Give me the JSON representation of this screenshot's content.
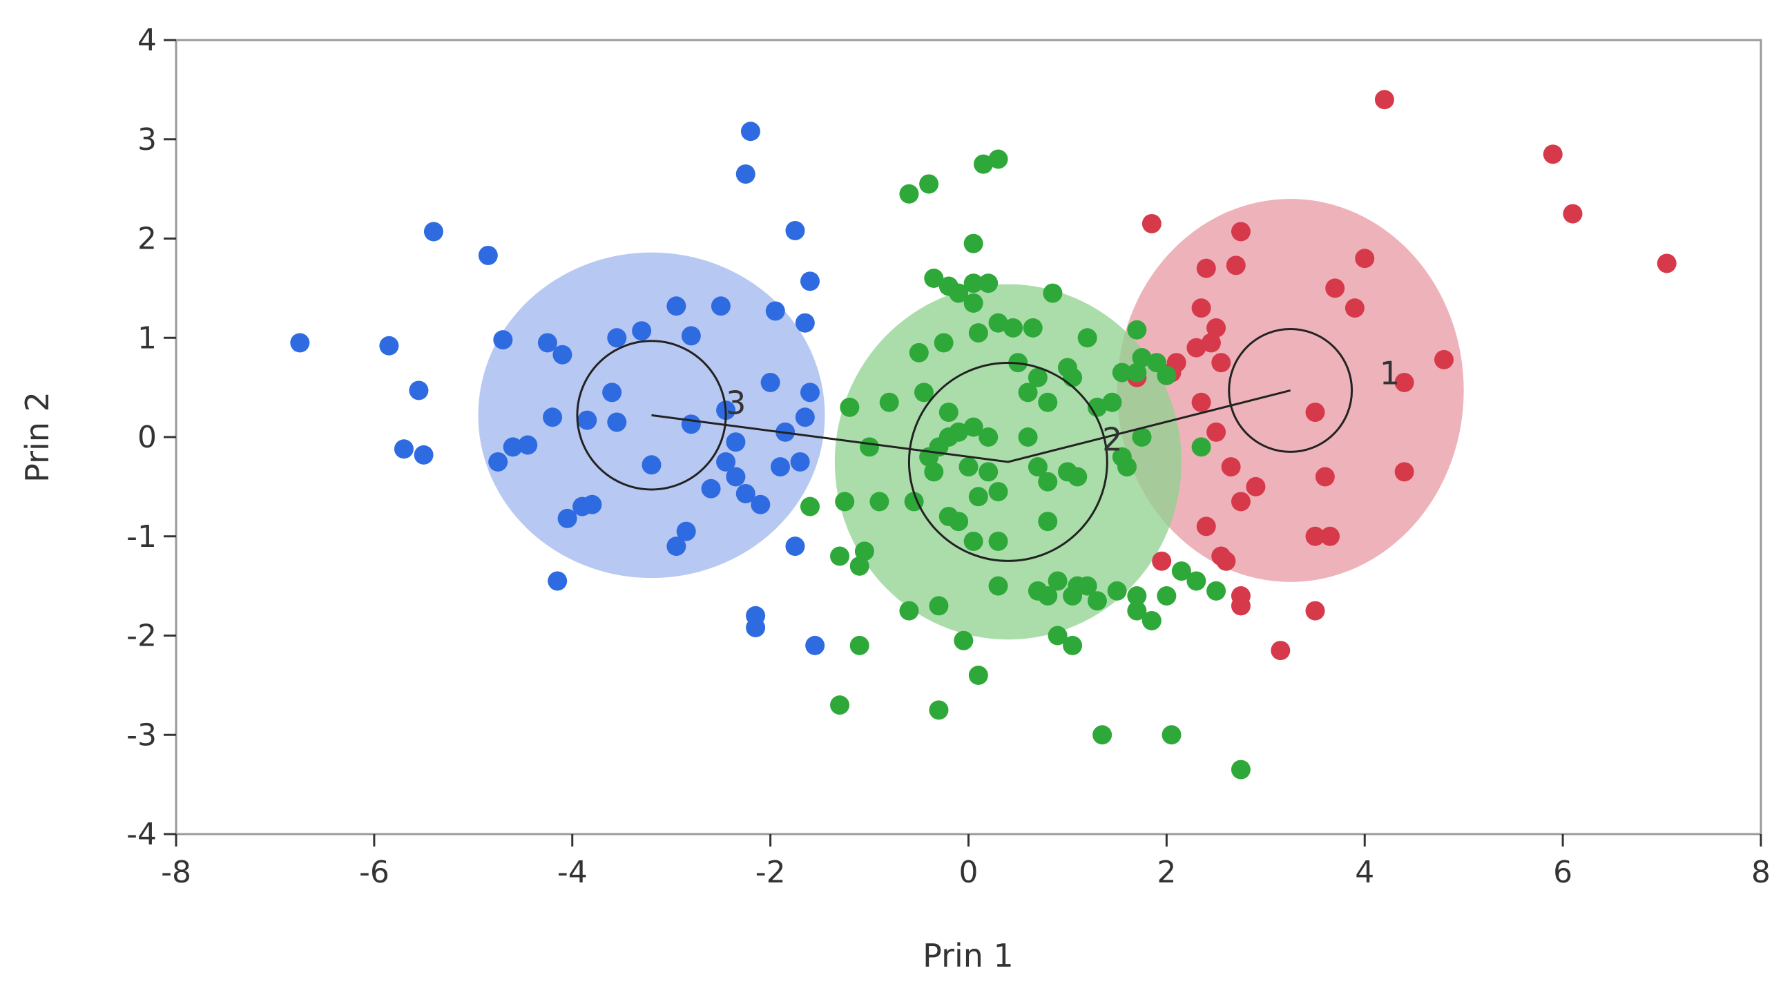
{
  "chart_data": {
    "type": "scatter",
    "title": "",
    "xlabel": "Prin 1",
    "ylabel": "Prin 2",
    "xlim": [
      -8,
      8
    ],
    "ylim": [
      -4,
      4
    ],
    "x_ticks": [
      "-8",
      "-6",
      "-4",
      "-2",
      "0",
      "2",
      "4",
      "6",
      "8"
    ],
    "y_ticks": [
      "-4",
      "-3",
      "-2",
      "-1",
      "0",
      "1",
      "2",
      "3",
      "4"
    ],
    "grid": false,
    "legend": "none",
    "centroid_path": [
      [
        -3.2,
        0.22
      ],
      [
        0.4,
        -0.25
      ],
      [
        3.25,
        0.47
      ]
    ],
    "clusters": [
      {
        "label": "1",
        "color": "#d63a4a",
        "fill": "#e89aa3",
        "centroid": [
          3.25,
          0.47
        ],
        "ellipse_radius": [
          1.75,
          1.93
        ],
        "center_circle_radius": 0.62,
        "label_pos": [
          4.15,
          0.62
        ],
        "points": [
          [
            4.2,
            3.4
          ],
          [
            5.9,
            2.85
          ],
          [
            6.1,
            2.25
          ],
          [
            7.05,
            1.75
          ],
          [
            1.85,
            2.15
          ],
          [
            2.75,
            2.07
          ],
          [
            2.4,
            1.7
          ],
          [
            2.7,
            1.73
          ],
          [
            4.0,
            1.8
          ],
          [
            3.7,
            1.5
          ],
          [
            3.9,
            1.3
          ],
          [
            2.35,
            1.3
          ],
          [
            2.5,
            1.1
          ],
          [
            2.45,
            0.95
          ],
          [
            2.3,
            0.9
          ],
          [
            2.55,
            0.75
          ],
          [
            2.05,
            0.65
          ],
          [
            1.7,
            0.6
          ],
          [
            2.1,
            0.75
          ],
          [
            4.4,
            0.55
          ],
          [
            4.8,
            0.78
          ],
          [
            3.5,
            0.25
          ],
          [
            2.35,
            0.35
          ],
          [
            2.5,
            0.05
          ],
          [
            2.65,
            -0.3
          ],
          [
            2.9,
            -0.5
          ],
          [
            2.75,
            -0.65
          ],
          [
            3.6,
            -0.4
          ],
          [
            4.4,
            -0.35
          ],
          [
            2.4,
            -0.9
          ],
          [
            3.5,
            -1.0
          ],
          [
            3.65,
            -1.0
          ],
          [
            2.55,
            -1.2
          ],
          [
            1.95,
            -1.25
          ],
          [
            2.6,
            -1.25
          ],
          [
            2.75,
            -1.6
          ],
          [
            2.75,
            -1.7
          ],
          [
            3.5,
            -1.75
          ],
          [
            3.15,
            -2.15
          ]
        ]
      },
      {
        "label": "2",
        "color": "#2fa83a",
        "fill": "#8fd18f",
        "centroid": [
          0.4,
          -0.25
        ],
        "ellipse_radius": [
          1.75,
          1.79
        ],
        "center_circle_radius": 1.0,
        "label_pos": [
          1.35,
          -0.05
        ],
        "points": [
          [
            0.3,
            2.8
          ],
          [
            0.15,
            2.75
          ],
          [
            -0.4,
            2.55
          ],
          [
            -0.6,
            2.45
          ],
          [
            0.05,
            1.95
          ],
          [
            -0.35,
            1.6
          ],
          [
            -0.2,
            1.52
          ],
          [
            0.05,
            1.55
          ],
          [
            -0.1,
            1.45
          ],
          [
            0.2,
            1.55
          ],
          [
            0.05,
            1.35
          ],
          [
            0.85,
            1.45
          ],
          [
            0.3,
            1.15
          ],
          [
            0.45,
            1.1
          ],
          [
            0.65,
            1.1
          ],
          [
            0.1,
            1.05
          ],
          [
            -0.25,
            0.95
          ],
          [
            1.2,
            1.0
          ],
          [
            1.7,
            1.08
          ],
          [
            -0.5,
            0.85
          ],
          [
            0.5,
            0.75
          ],
          [
            1.0,
            0.7
          ],
          [
            1.75,
            0.8
          ],
          [
            1.9,
            0.75
          ],
          [
            0.7,
            0.6
          ],
          [
            1.05,
            0.6
          ],
          [
            1.55,
            0.65
          ],
          [
            1.7,
            0.65
          ],
          [
            2.0,
            0.62
          ],
          [
            -0.45,
            0.45
          ],
          [
            0.6,
            0.45
          ],
          [
            0.8,
            0.35
          ],
          [
            -0.8,
            0.35
          ],
          [
            -1.2,
            0.3
          ],
          [
            -0.2,
            0.25
          ],
          [
            0.05,
            0.1
          ],
          [
            -0.1,
            0.05
          ],
          [
            -0.2,
            0.0
          ],
          [
            -0.3,
            -0.1
          ],
          [
            0.2,
            0.0
          ],
          [
            0.6,
            0.0
          ],
          [
            1.3,
            0.3
          ],
          [
            1.45,
            0.35
          ],
          [
            1.75,
            0.0
          ],
          [
            2.35,
            -0.1
          ],
          [
            1.55,
            -0.2
          ],
          [
            1.6,
            -0.3
          ],
          [
            -1.0,
            -0.1
          ],
          [
            -0.4,
            -0.2
          ],
          [
            0.0,
            -0.3
          ],
          [
            0.2,
            -0.35
          ],
          [
            0.7,
            -0.3
          ],
          [
            1.0,
            -0.35
          ],
          [
            -0.35,
            -0.35
          ],
          [
            0.1,
            -0.6
          ],
          [
            0.3,
            -0.55
          ],
          [
            0.8,
            -0.45
          ],
          [
            1.1,
            -0.4
          ],
          [
            -1.6,
            -0.7
          ],
          [
            -1.25,
            -0.65
          ],
          [
            -0.9,
            -0.65
          ],
          [
            -0.55,
            -0.65
          ],
          [
            -0.2,
            -0.8
          ],
          [
            -0.1,
            -0.85
          ],
          [
            0.8,
            -0.85
          ],
          [
            0.05,
            -1.05
          ],
          [
            0.3,
            -1.05
          ],
          [
            -1.3,
            -1.2
          ],
          [
            -1.05,
            -1.15
          ],
          [
            -1.1,
            -1.3
          ],
          [
            0.9,
            -1.45
          ],
          [
            1.1,
            -1.5
          ],
          [
            1.2,
            -1.5
          ],
          [
            0.7,
            -1.55
          ],
          [
            0.8,
            -1.6
          ],
          [
            1.05,
            -1.6
          ],
          [
            0.3,
            -1.5
          ],
          [
            1.5,
            -1.55
          ],
          [
            1.7,
            -1.6
          ],
          [
            2.15,
            -1.35
          ],
          [
            2.3,
            -1.45
          ],
          [
            2.5,
            -1.55
          ],
          [
            1.3,
            -1.65
          ],
          [
            -0.6,
            -1.75
          ],
          [
            -0.3,
            -1.7
          ],
          [
            1.7,
            -1.75
          ],
          [
            1.85,
            -1.85
          ],
          [
            2.0,
            -1.6
          ],
          [
            -0.05,
            -2.05
          ],
          [
            0.9,
            -2.0
          ],
          [
            1.05,
            -2.1
          ],
          [
            -1.1,
            -2.1
          ],
          [
            0.1,
            -2.4
          ],
          [
            -1.3,
            -2.7
          ],
          [
            -0.3,
            -2.75
          ],
          [
            1.35,
            -3.0
          ],
          [
            2.05,
            -3.0
          ],
          [
            2.75,
            -3.35
          ]
        ]
      },
      {
        "label": "3",
        "color": "#2f6be0",
        "fill": "#9fb5ee",
        "centroid": [
          -3.2,
          0.22
        ],
        "ellipse_radius": [
          1.75,
          1.64
        ],
        "center_circle_radius": 0.75,
        "label_pos": [
          -2.45,
          0.32
        ],
        "points": [
          [
            -2.2,
            3.08
          ],
          [
            -2.25,
            2.65
          ],
          [
            -5.4,
            2.07
          ],
          [
            -4.85,
            1.83
          ],
          [
            -1.75,
            2.08
          ],
          [
            -1.6,
            1.57
          ],
          [
            -1.95,
            1.27
          ],
          [
            -1.65,
            1.15
          ],
          [
            -2.5,
            1.32
          ],
          [
            -2.95,
            1.32
          ],
          [
            -3.3,
            1.07
          ],
          [
            -3.55,
            1.0
          ],
          [
            -4.7,
            0.98
          ],
          [
            -4.25,
            0.95
          ],
          [
            -4.1,
            0.83
          ],
          [
            -2.8,
            1.02
          ],
          [
            -6.75,
            0.95
          ],
          [
            -5.85,
            0.92
          ],
          [
            -5.55,
            0.47
          ],
          [
            -2.0,
            0.55
          ],
          [
            -1.6,
            0.45
          ],
          [
            -3.6,
            0.45
          ],
          [
            -2.45,
            0.27
          ],
          [
            -2.8,
            0.13
          ],
          [
            -4.2,
            0.2
          ],
          [
            -3.85,
            0.17
          ],
          [
            -3.55,
            0.15
          ],
          [
            -1.65,
            0.2
          ],
          [
            -1.85,
            0.05
          ],
          [
            -2.35,
            -0.05
          ],
          [
            -4.45,
            -0.08
          ],
          [
            -4.6,
            -0.1
          ],
          [
            -5.7,
            -0.12
          ],
          [
            -5.5,
            -0.18
          ],
          [
            -4.75,
            -0.25
          ],
          [
            -3.2,
            -0.28
          ],
          [
            -2.45,
            -0.25
          ],
          [
            -1.9,
            -0.3
          ],
          [
            -1.7,
            -0.25
          ],
          [
            -2.35,
            -0.4
          ],
          [
            -2.6,
            -0.52
          ],
          [
            -2.25,
            -0.57
          ],
          [
            -2.1,
            -0.68
          ],
          [
            -3.8,
            -0.68
          ],
          [
            -3.9,
            -0.7
          ],
          [
            -4.05,
            -0.82
          ],
          [
            -2.85,
            -0.95
          ],
          [
            -2.95,
            -1.1
          ],
          [
            -1.75,
            -1.1
          ],
          [
            -4.15,
            -1.45
          ],
          [
            -2.15,
            -1.8
          ],
          [
            -2.15,
            -1.92
          ],
          [
            -1.55,
            -2.1
          ]
        ]
      }
    ]
  }
}
